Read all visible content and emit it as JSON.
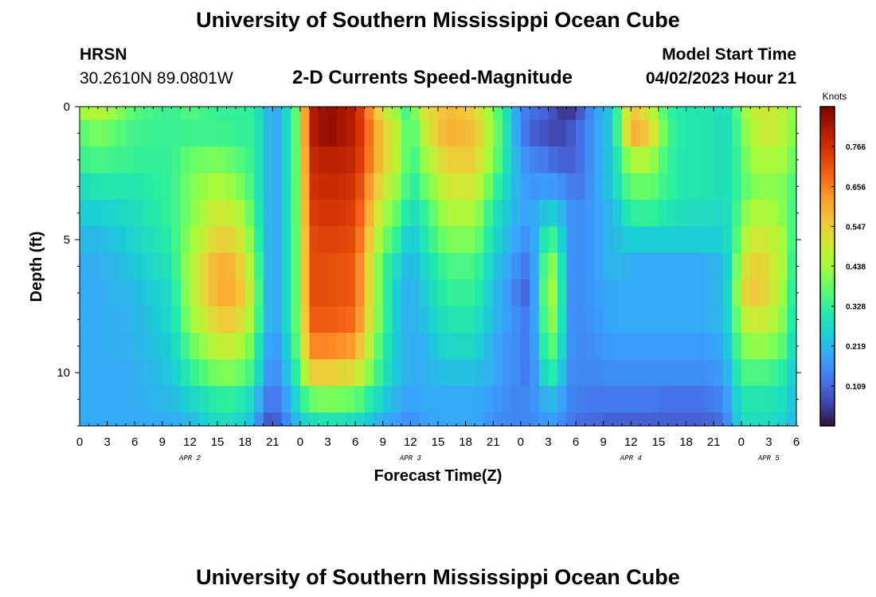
{
  "header": {
    "title": "University of Southern Mississippi Ocean Cube",
    "station": "HRSN",
    "coords": "30.2610N  89.0801W",
    "subtitle": "2-D Currents Speed-Magnitude",
    "model_label": "Model Start Time",
    "model_time": "04/02/2023 Hour 21"
  },
  "footer": {
    "title": "University of Southern Mississippi Ocean Cube"
  },
  "colors": {
    "colormap": [
      "#30123b",
      "#4145ab",
      "#4675ed",
      "#39a2fc",
      "#1bcfd4",
      "#24eca6",
      "#61fc6c",
      "#a4fc3b",
      "#d1e834",
      "#f3c63a",
      "#fe9b2d",
      "#f36315",
      "#d93806",
      "#b11901",
      "#7a0402"
    ]
  },
  "chart_data": {
    "type": "heatmap",
    "title": "2-D Currents Speed-Magnitude",
    "xlabel": "Forecast Time(Z)",
    "ylabel": "Depth (ft)",
    "colorbar_label": "Knots",
    "x_hours": [
      0,
      3,
      6,
      9,
      12,
      15,
      18,
      21,
      24,
      27,
      30,
      33,
      36,
      39,
      42,
      45,
      48,
      51,
      54,
      57,
      60,
      63,
      66,
      69,
      72,
      75,
      78
    ],
    "xticklabels": [
      "0",
      "3",
      "6",
      "9",
      "12",
      "15",
      "18",
      "21",
      "0",
      "3",
      "6",
      "9",
      "12",
      "15",
      "18",
      "21",
      "0",
      "3",
      "6",
      "9",
      "12",
      "15",
      "18",
      "21",
      "0",
      "3",
      "6"
    ],
    "xlim": [
      0,
      78
    ],
    "day_labels": [
      {
        "hour": 12,
        "text": "APR 2"
      },
      {
        "hour": 36,
        "text": "APR 3"
      },
      {
        "hour": 60,
        "text": "APR 4"
      },
      {
        "hour": 75,
        "text": "APR 5"
      }
    ],
    "ylim": [
      0,
      12
    ],
    "yticks": [
      0,
      5,
      10
    ],
    "depth_rows_ft": [
      0.25,
      1,
      2,
      3,
      4,
      5,
      6,
      7,
      8,
      9,
      10,
      11,
      11.75
    ],
    "depth_edges_ft": [
      0,
      0.5,
      1.5,
      2.5,
      3.5,
      4.5,
      5.5,
      6.5,
      7.5,
      8.5,
      9.5,
      10.5,
      11.5,
      12
    ],
    "colorbar_ticks": [
      0.109,
      0.219,
      0.328,
      0.438,
      0.547,
      0.656,
      0.766
    ],
    "vmin": 0.0,
    "vmax": 0.875,
    "profile_breakpoints_h": [
      0,
      2,
      6,
      10,
      12,
      15,
      17,
      19,
      20,
      21,
      22,
      24,
      25,
      27,
      30,
      33,
      35,
      36,
      37,
      40,
      43,
      45,
      47,
      48,
      49,
      51,
      52,
      53,
      54,
      56,
      58,
      60,
      62,
      64,
      66,
      68,
      70,
      71,
      72,
      73,
      75,
      77,
      78
    ],
    "speed_profiles_knots": [
      [
        0.42,
        0.47,
        0.36,
        0.33,
        0.36,
        0.33,
        0.33,
        0.32,
        0.25,
        0.18,
        0.22,
        0.42,
        0.8,
        0.85,
        0.8,
        0.5,
        0.4,
        0.3,
        0.5,
        0.58,
        0.55,
        0.4,
        0.25,
        0.15,
        0.12,
        0.1,
        0.06,
        0.04,
        0.06,
        0.18,
        0.25,
        0.58,
        0.5,
        0.33,
        0.3,
        0.3,
        0.28,
        0.3,
        0.4,
        0.47,
        0.5,
        0.45,
        0.4
      ],
      [
        0.36,
        0.4,
        0.34,
        0.33,
        0.34,
        0.34,
        0.33,
        0.33,
        0.25,
        0.18,
        0.22,
        0.42,
        0.8,
        0.85,
        0.8,
        0.55,
        0.45,
        0.3,
        0.45,
        0.6,
        0.57,
        0.42,
        0.25,
        0.15,
        0.1,
        0.08,
        0.06,
        0.08,
        0.1,
        0.18,
        0.25,
        0.6,
        0.55,
        0.35,
        0.3,
        0.3,
        0.28,
        0.3,
        0.38,
        0.45,
        0.5,
        0.45,
        0.38
      ],
      [
        0.33,
        0.35,
        0.33,
        0.33,
        0.38,
        0.4,
        0.37,
        0.33,
        0.25,
        0.18,
        0.22,
        0.42,
        0.78,
        0.8,
        0.78,
        0.55,
        0.45,
        0.3,
        0.4,
        0.55,
        0.55,
        0.4,
        0.25,
        0.18,
        0.15,
        0.13,
        0.1,
        0.1,
        0.1,
        0.18,
        0.25,
        0.45,
        0.45,
        0.33,
        0.3,
        0.3,
        0.28,
        0.3,
        0.36,
        0.43,
        0.45,
        0.43,
        0.35
      ],
      [
        0.28,
        0.3,
        0.3,
        0.33,
        0.4,
        0.45,
        0.42,
        0.33,
        0.25,
        0.18,
        0.22,
        0.42,
        0.76,
        0.78,
        0.76,
        0.5,
        0.4,
        0.3,
        0.35,
        0.5,
        0.5,
        0.35,
        0.23,
        0.2,
        0.17,
        0.18,
        0.17,
        0.15,
        0.12,
        0.18,
        0.25,
        0.38,
        0.38,
        0.33,
        0.3,
        0.3,
        0.28,
        0.3,
        0.35,
        0.4,
        0.42,
        0.4,
        0.32
      ],
      [
        0.25,
        0.25,
        0.28,
        0.33,
        0.4,
        0.5,
        0.48,
        0.35,
        0.25,
        0.18,
        0.22,
        0.42,
        0.74,
        0.76,
        0.74,
        0.45,
        0.35,
        0.27,
        0.3,
        0.45,
        0.45,
        0.3,
        0.22,
        0.2,
        0.18,
        0.25,
        0.25,
        0.18,
        0.15,
        0.18,
        0.22,
        0.32,
        0.33,
        0.3,
        0.28,
        0.28,
        0.27,
        0.3,
        0.38,
        0.45,
        0.45,
        0.4,
        0.3
      ],
      [
        0.22,
        0.22,
        0.26,
        0.32,
        0.42,
        0.55,
        0.53,
        0.38,
        0.25,
        0.18,
        0.22,
        0.42,
        0.72,
        0.74,
        0.72,
        0.4,
        0.3,
        0.22,
        0.28,
        0.4,
        0.4,
        0.28,
        0.2,
        0.18,
        0.15,
        0.35,
        0.32,
        0.18,
        0.15,
        0.18,
        0.22,
        0.25,
        0.25,
        0.25,
        0.25,
        0.25,
        0.25,
        0.3,
        0.42,
        0.5,
        0.5,
        0.42,
        0.28
      ],
      [
        0.2,
        0.2,
        0.24,
        0.3,
        0.45,
        0.6,
        0.58,
        0.42,
        0.25,
        0.18,
        0.22,
        0.42,
        0.72,
        0.72,
        0.7,
        0.35,
        0.25,
        0.2,
        0.25,
        0.35,
        0.35,
        0.25,
        0.18,
        0.15,
        0.12,
        0.42,
        0.4,
        0.18,
        0.15,
        0.18,
        0.22,
        0.2,
        0.2,
        0.2,
        0.2,
        0.2,
        0.22,
        0.3,
        0.48,
        0.55,
        0.52,
        0.42,
        0.26
      ],
      [
        0.2,
        0.2,
        0.22,
        0.28,
        0.45,
        0.6,
        0.6,
        0.45,
        0.25,
        0.18,
        0.22,
        0.42,
        0.72,
        0.72,
        0.7,
        0.35,
        0.22,
        0.2,
        0.23,
        0.33,
        0.33,
        0.23,
        0.16,
        0.12,
        0.1,
        0.45,
        0.42,
        0.18,
        0.15,
        0.18,
        0.2,
        0.2,
        0.2,
        0.2,
        0.2,
        0.2,
        0.22,
        0.32,
        0.5,
        0.57,
        0.52,
        0.4,
        0.25
      ],
      [
        0.2,
        0.2,
        0.21,
        0.27,
        0.42,
        0.55,
        0.55,
        0.42,
        0.25,
        0.18,
        0.22,
        0.42,
        0.7,
        0.7,
        0.68,
        0.35,
        0.22,
        0.2,
        0.22,
        0.3,
        0.3,
        0.22,
        0.17,
        0.15,
        0.12,
        0.42,
        0.4,
        0.18,
        0.15,
        0.17,
        0.2,
        0.2,
        0.2,
        0.2,
        0.2,
        0.2,
        0.22,
        0.3,
        0.45,
        0.5,
        0.48,
        0.38,
        0.24
      ],
      [
        0.2,
        0.2,
        0.21,
        0.25,
        0.37,
        0.48,
        0.48,
        0.37,
        0.22,
        0.16,
        0.2,
        0.4,
        0.65,
        0.65,
        0.62,
        0.32,
        0.22,
        0.2,
        0.2,
        0.27,
        0.27,
        0.2,
        0.16,
        0.15,
        0.12,
        0.38,
        0.35,
        0.18,
        0.15,
        0.16,
        0.18,
        0.18,
        0.18,
        0.18,
        0.18,
        0.18,
        0.2,
        0.28,
        0.4,
        0.42,
        0.42,
        0.35,
        0.23
      ],
      [
        0.2,
        0.2,
        0.2,
        0.24,
        0.32,
        0.4,
        0.4,
        0.33,
        0.2,
        0.15,
        0.18,
        0.36,
        0.55,
        0.55,
        0.52,
        0.3,
        0.22,
        0.2,
        0.2,
        0.23,
        0.23,
        0.2,
        0.16,
        0.15,
        0.12,
        0.32,
        0.3,
        0.16,
        0.15,
        0.15,
        0.16,
        0.16,
        0.16,
        0.16,
        0.16,
        0.16,
        0.18,
        0.25,
        0.35,
        0.35,
        0.35,
        0.3,
        0.22
      ],
      [
        0.2,
        0.2,
        0.2,
        0.22,
        0.26,
        0.32,
        0.32,
        0.26,
        0.15,
        0.12,
        0.15,
        0.3,
        0.38,
        0.4,
        0.38,
        0.25,
        0.2,
        0.18,
        0.2,
        0.2,
        0.2,
        0.18,
        0.15,
        0.15,
        0.15,
        0.22,
        0.22,
        0.15,
        0.14,
        0.13,
        0.13,
        0.13,
        0.13,
        0.12,
        0.12,
        0.12,
        0.15,
        0.22,
        0.3,
        0.3,
        0.3,
        0.27,
        0.21
      ],
      [
        0.2,
        0.2,
        0.2,
        0.2,
        0.22,
        0.28,
        0.28,
        0.22,
        0.1,
        0.08,
        0.12,
        0.25,
        0.28,
        0.3,
        0.28,
        0.2,
        0.18,
        0.15,
        0.18,
        0.2,
        0.2,
        0.16,
        0.15,
        0.15,
        0.15,
        0.18,
        0.18,
        0.14,
        0.12,
        0.11,
        0.1,
        0.1,
        0.1,
        0.1,
        0.1,
        0.1,
        0.12,
        0.2,
        0.28,
        0.28,
        0.28,
        0.25,
        0.2
      ]
    ]
  }
}
